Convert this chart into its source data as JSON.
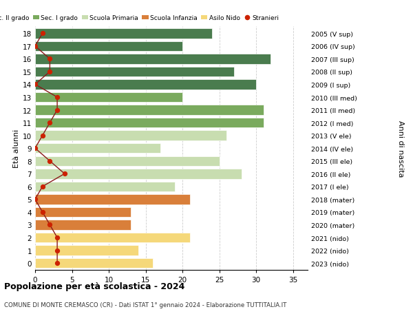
{
  "ages": [
    18,
    17,
    16,
    15,
    14,
    13,
    12,
    11,
    10,
    9,
    8,
    7,
    6,
    5,
    4,
    3,
    2,
    1,
    0
  ],
  "bar_values": [
    24,
    20,
    32,
    27,
    30,
    20,
    31,
    31,
    26,
    17,
    25,
    28,
    19,
    21,
    13,
    13,
    21,
    14,
    16
  ],
  "bar_colors": [
    "#4a7c4e",
    "#4a7c4e",
    "#4a7c4e",
    "#4a7c4e",
    "#4a7c4e",
    "#7aaa5e",
    "#7aaa5e",
    "#7aaa5e",
    "#c8ddb0",
    "#c8ddb0",
    "#c8ddb0",
    "#c8ddb0",
    "#c8ddb0",
    "#d97f3a",
    "#d97f3a",
    "#d97f3a",
    "#f5d87a",
    "#f5d87a",
    "#f5d87a"
  ],
  "stranieri_values": [
    1,
    0,
    2,
    2,
    0,
    3,
    3,
    2,
    1,
    0,
    2,
    4,
    1,
    0,
    1,
    2,
    3,
    3,
    3
  ],
  "right_labels": [
    "2005 (V sup)",
    "2006 (IV sup)",
    "2007 (III sup)",
    "2008 (II sup)",
    "2009 (I sup)",
    "2010 (III med)",
    "2011 (II med)",
    "2012 (I med)",
    "2013 (V ele)",
    "2014 (IV ele)",
    "2015 (III ele)",
    "2016 (II ele)",
    "2017 (I ele)",
    "2018 (mater)",
    "2019 (mater)",
    "2020 (mater)",
    "2021 (nido)",
    "2022 (nido)",
    "2023 (nido)"
  ],
  "legend_labels": [
    "Sec. II grado",
    "Sec. I grado",
    "Scuola Primaria",
    "Scuola Infanzia",
    "Asilo Nido",
    "Stranieri"
  ],
  "legend_colors": [
    "#4a7c4e",
    "#7aaa5e",
    "#c8ddb0",
    "#d97f3a",
    "#f5d87a",
    "#cc2200"
  ],
  "title": "Popolazione per età scolastica - 2024",
  "subtitle": "COMUNE DI MONTE CREMASCO (CR) - Dati ISTAT 1° gennaio 2024 - Elaborazione TUTTITALIA.IT",
  "ylabel_left": "Età alunni",
  "ylabel_right": "Anni di nascita",
  "bg_color": "#ffffff",
  "grid_color": "#cccccc",
  "bar_height": 0.78,
  "xlim": [
    0,
    37
  ],
  "xticks": [
    0,
    5,
    10,
    15,
    20,
    25,
    30,
    35
  ]
}
